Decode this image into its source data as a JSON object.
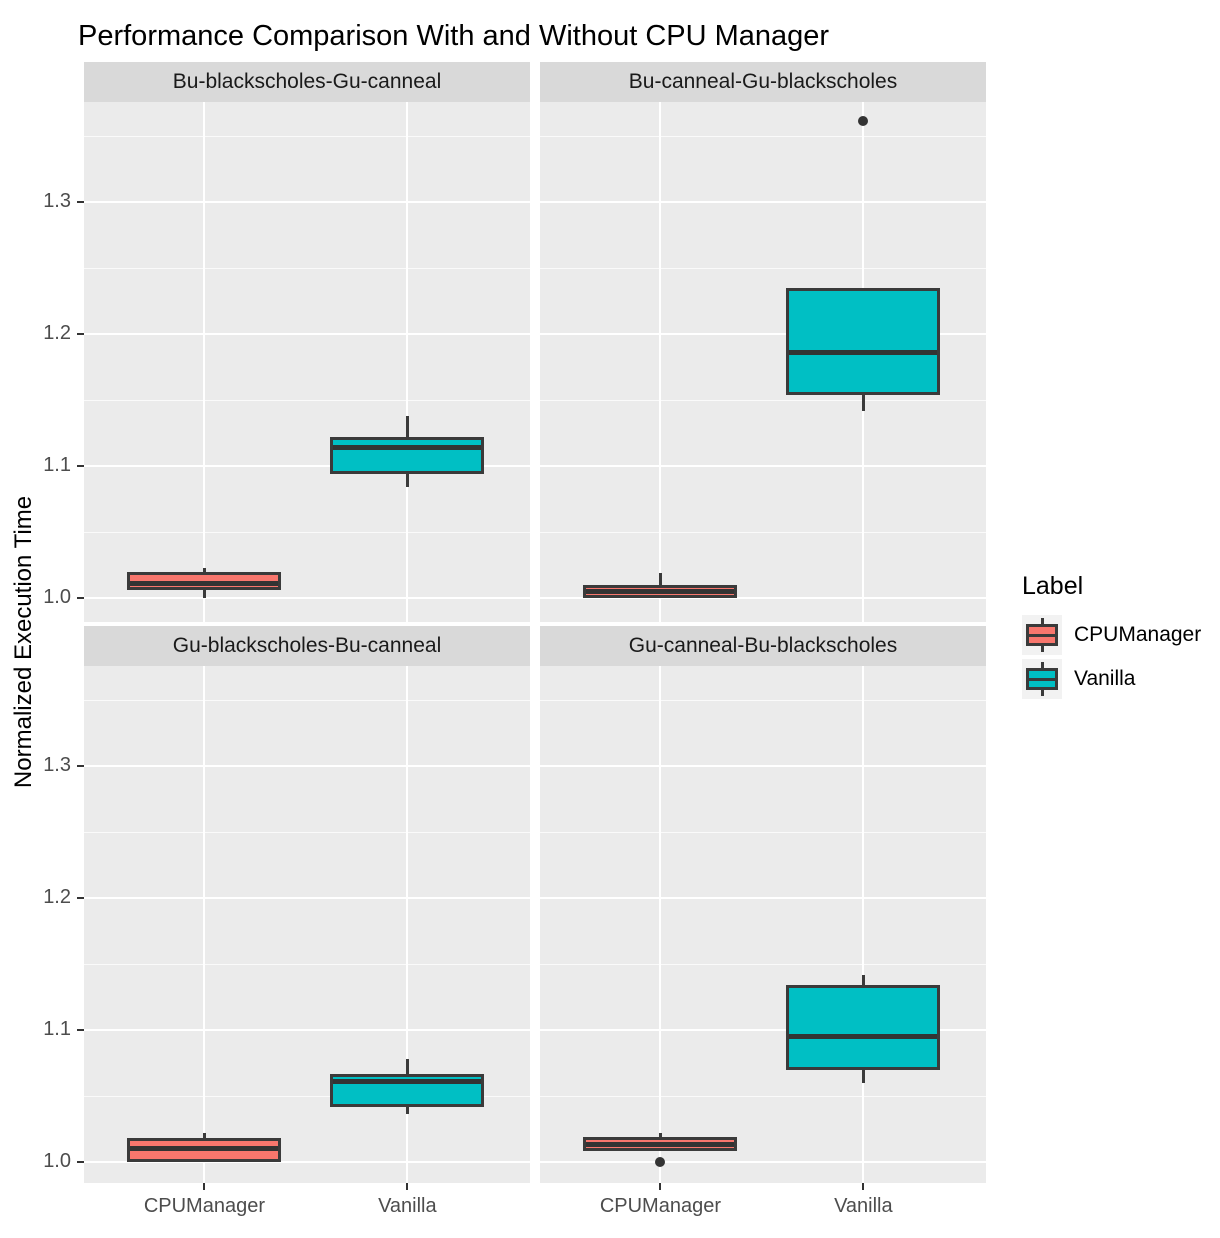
{
  "chart_data": {
    "type": "boxplot",
    "title": "Performance Comparison With and Without CPU Manager",
    "ylabel": "Normalized Execution Time",
    "xlabel": "",
    "categories": [
      "CPUManager",
      "Vanilla"
    ],
    "y_tick_labels": [
      "1.0",
      "1.1",
      "1.2",
      "1.3"
    ],
    "y_tick_values": [
      1.0,
      1.1,
      1.2,
      1.3
    ],
    "y_minor_tick_values": [
      1.05,
      1.15,
      1.25,
      1.35
    ],
    "y_range_shown": [
      0.982,
      1.377
    ],
    "grid": true,
    "facet_layout": "2x2",
    "legend": {
      "title": "Label",
      "position": "right",
      "items": [
        {
          "label": "CPUManager",
          "color": "#F8766D"
        },
        {
          "label": "Vanilla",
          "color": "#00BFC4"
        }
      ]
    },
    "colors": {
      "cpumanager_fill": "#F8766D",
      "vanilla_fill": "#00BFC4",
      "box_border": "#3A3A3A",
      "panel_bg": "#EBEBEB",
      "strip_bg": "#D9D9D9",
      "grid_line": "#FFFFFF",
      "tick_label": "#4D4D4D",
      "outlier": "#333333"
    },
    "facets": [
      {
        "label": "Bu-blackscholes-Gu-canneal",
        "row": 0,
        "col": 0,
        "boxes": [
          {
            "group": "CPUManager",
            "min": 1.0,
            "q1": 1.006,
            "median": 1.011,
            "q3": 1.02,
            "max": 1.023,
            "outliers": []
          },
          {
            "group": "Vanilla",
            "min": 1.084,
            "q1": 1.094,
            "median": 1.114,
            "q3": 1.122,
            "max": 1.138,
            "outliers": []
          }
        ]
      },
      {
        "label": "Bu-canneal-Gu-blackscholes",
        "row": 0,
        "col": 1,
        "boxes": [
          {
            "group": "CPUManager",
            "min": 1.0,
            "q1": 1.0,
            "median": 1.005,
            "q3": 1.01,
            "max": 1.019,
            "outliers": []
          },
          {
            "group": "Vanilla",
            "min": 1.142,
            "q1": 1.154,
            "median": 1.186,
            "q3": 1.235,
            "max": 1.235,
            "outliers": [
              1.361
            ]
          }
        ]
      },
      {
        "label": "Gu-blackscholes-Bu-canneal",
        "row": 1,
        "col": 0,
        "boxes": [
          {
            "group": "CPUManager",
            "min": 1.0,
            "q1": 1.0,
            "median": 1.01,
            "q3": 1.018,
            "max": 1.022,
            "outliers": []
          },
          {
            "group": "Vanilla",
            "min": 1.036,
            "q1": 1.042,
            "median": 1.061,
            "q3": 1.067,
            "max": 1.078,
            "outliers": []
          }
        ]
      },
      {
        "label": "Gu-canneal-Bu-blackscholes",
        "row": 1,
        "col": 1,
        "boxes": [
          {
            "group": "CPUManager",
            "min": 1.008,
            "q1": 1.008,
            "median": 1.013,
            "q3": 1.019,
            "max": 1.022,
            "outliers": [
              1.0
            ]
          },
          {
            "group": "Vanilla",
            "min": 1.06,
            "q1": 1.07,
            "median": 1.095,
            "q3": 1.134,
            "max": 1.142,
            "outliers": []
          }
        ]
      }
    ]
  }
}
